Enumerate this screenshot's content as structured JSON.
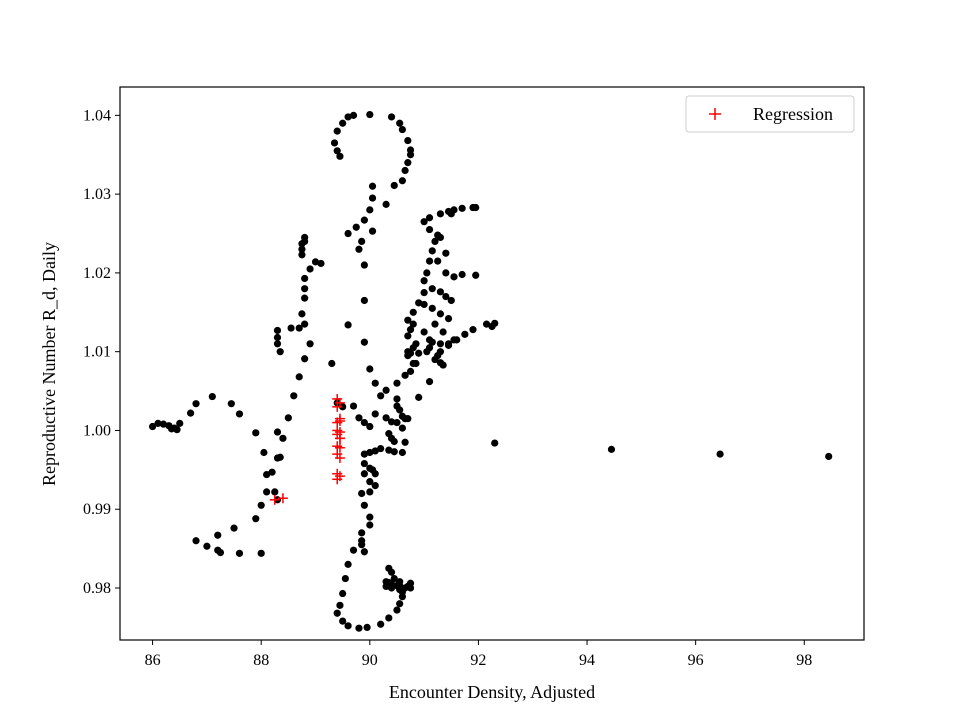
{
  "chart_data": {
    "type": "scatter",
    "xlabel": "Encounter Density, Adjusted",
    "ylabel": "Reproductive Number R_d, Daily",
    "xlim": [
      85.4,
      99.1
    ],
    "ylim": [
      0.9734,
      1.0436
    ],
    "x_ticks": [
      86,
      88,
      90,
      92,
      94,
      96,
      98
    ],
    "y_ticks": [
      0.98,
      0.99,
      1.0,
      1.01,
      1.02,
      1.03,
      1.04
    ],
    "y_tick_labels": [
      "0.98",
      "0.99",
      "1.00",
      "1.01",
      "1.02",
      "1.03",
      "1.04"
    ],
    "legend": {
      "placement": "top-right",
      "entries": [
        "Regression"
      ]
    },
    "colors": {
      "observed": "#000000",
      "regression": "#ff0000"
    },
    "series": [
      {
        "marker": "dot",
        "points": [
          [
            86.0,
            1.0005
          ],
          [
            86.1,
            1.0009
          ],
          [
            86.2,
            1.0008
          ],
          [
            86.3,
            1.0006
          ],
          [
            86.35,
            1.0002
          ],
          [
            86.4,
            1.0003
          ],
          [
            86.45,
            1.0001
          ],
          [
            86.5,
            1.0009
          ],
          [
            86.7,
            1.0022
          ],
          [
            86.8,
            1.0034
          ],
          [
            87.1,
            1.0043
          ],
          [
            87.45,
            1.0034
          ],
          [
            87.6,
            1.0021
          ],
          [
            87.9,
            0.9997
          ],
          [
            88.05,
            0.9972
          ],
          [
            88.1,
            0.9944
          ],
          [
            88.2,
            0.9947
          ],
          [
            88.3,
            0.9965
          ],
          [
            88.4,
            0.999
          ],
          [
            88.5,
            1.0016
          ],
          [
            88.6,
            1.0044
          ],
          [
            88.7,
            1.0068
          ],
          [
            88.8,
            1.0091
          ],
          [
            88.9,
            1.011
          ],
          [
            88.7,
            1.013
          ],
          [
            88.8,
            1.0135
          ],
          [
            88.75,
            1.0148
          ],
          [
            88.8,
            1.0168
          ],
          [
            88.8,
            1.018
          ],
          [
            88.8,
            1.0193
          ],
          [
            88.9,
            1.0205
          ],
          [
            89.0,
            1.0214
          ],
          [
            89.1,
            1.0212
          ],
          [
            88.75,
            1.0223
          ],
          [
            88.75,
            1.023
          ],
          [
            88.75,
            1.0237
          ],
          [
            88.8,
            1.024
          ],
          [
            88.8,
            1.0245
          ],
          [
            88.3,
            1.0127
          ],
          [
            88.3,
            1.0118
          ],
          [
            88.3,
            1.011
          ],
          [
            88.35,
            1.01
          ],
          [
            88.55,
            1.013
          ],
          [
            88.3,
            0.9998
          ],
          [
            88.35,
            0.9966
          ],
          [
            88.25,
            0.9922
          ],
          [
            88.3,
            0.9912
          ],
          [
            88.1,
            0.9922
          ],
          [
            88.0,
            0.9905
          ],
          [
            87.9,
            0.9888
          ],
          [
            87.5,
            0.9876
          ],
          [
            87.2,
            0.9867
          ],
          [
            87.0,
            0.9853
          ],
          [
            86.8,
            0.986
          ],
          [
            87.2,
            0.9848
          ],
          [
            87.25,
            0.9845
          ],
          [
            87.6,
            0.9844
          ],
          [
            88.0,
            0.9844
          ],
          [
            89.3,
            1.0085
          ],
          [
            89.6,
            1.0134
          ],
          [
            89.9,
            1.0165
          ],
          [
            89.9,
            1.021
          ],
          [
            89.8,
            1.023
          ],
          [
            89.85,
            1.024
          ],
          [
            89.6,
            1.025
          ],
          [
            89.75,
            1.0258
          ],
          [
            89.9,
            1.0267
          ],
          [
            90.0,
            1.028
          ],
          [
            90.05,
            1.0295
          ],
          [
            90.05,
            1.031
          ],
          [
            90.3,
            1.0287
          ],
          [
            90.45,
            1.0311
          ],
          [
            90.6,
            1.0317
          ],
          [
            90.65,
            1.033
          ],
          [
            90.7,
            1.034
          ],
          [
            90.75,
            1.035
          ],
          [
            90.75,
            1.0356
          ],
          [
            90.7,
            1.0368
          ],
          [
            90.6,
            1.0382
          ],
          [
            90.55,
            1.039
          ],
          [
            90.4,
            1.0398
          ],
          [
            90.0,
            1.0401
          ],
          [
            89.7,
            1.04
          ],
          [
            89.6,
            1.0398
          ],
          [
            89.5,
            1.039
          ],
          [
            89.4,
            1.038
          ],
          [
            89.35,
            1.0365
          ],
          [
            89.4,
            1.0355
          ],
          [
            89.45,
            1.0348
          ],
          [
            90.05,
            1.0253
          ],
          [
            89.9,
            1.0112
          ],
          [
            90.0,
            1.0078
          ],
          [
            90.1,
            1.006
          ],
          [
            90.2,
            1.0044
          ],
          [
            90.3,
            1.0051
          ],
          [
            90.1,
            1.0021
          ],
          [
            90.3,
            1.0016
          ],
          [
            90.4,
            1.0011
          ],
          [
            89.7,
            1.0031
          ],
          [
            89.8,
            1.0016
          ],
          [
            89.9,
            1.001
          ],
          [
            90.0,
            1.0005
          ],
          [
            89.5,
            1.003
          ],
          [
            89.4,
            1.0035
          ],
          [
            89.9,
            0.997
          ],
          [
            90.0,
            0.9972
          ],
          [
            90.1,
            0.9974
          ],
          [
            90.2,
            0.9977
          ],
          [
            90.35,
            0.9975
          ],
          [
            90.45,
            0.9973
          ],
          [
            90.6,
            0.9972
          ],
          [
            90.65,
            0.9985
          ],
          [
            90.6,
            1.0003
          ],
          [
            90.65,
            1.0015
          ],
          [
            90.5,
            1.0031
          ],
          [
            90.5,
            1.001
          ],
          [
            90.35,
            0.9996
          ],
          [
            90.45,
            0.9986
          ],
          [
            90.4,
            0.999
          ],
          [
            89.9,
            0.9958
          ],
          [
            89.9,
            0.9945
          ],
          [
            90.05,
            0.995
          ],
          [
            90.1,
            0.9945
          ],
          [
            90.0,
            0.9935
          ],
          [
            90.1,
            0.993
          ],
          [
            89.85,
            0.992
          ],
          [
            89.9,
            0.9905
          ],
          [
            90.0,
            0.989
          ],
          [
            89.85,
            0.987
          ],
          [
            89.85,
            0.986
          ],
          [
            89.85,
            0.9855
          ],
          [
            89.9,
            0.9846
          ],
          [
            90.0,
            0.988
          ],
          [
            90.0,
            0.9922
          ],
          [
            90.0,
            0.9952
          ],
          [
            89.7,
            0.9848
          ],
          [
            89.6,
            0.983
          ],
          [
            89.55,
            0.9812
          ],
          [
            89.5,
            0.9793
          ],
          [
            89.45,
            0.9778
          ],
          [
            89.4,
            0.9768
          ],
          [
            89.5,
            0.9758
          ],
          [
            89.6,
            0.9752
          ],
          [
            89.8,
            0.9749
          ],
          [
            89.95,
            0.975
          ],
          [
            90.2,
            0.9754
          ],
          [
            90.35,
            0.9762
          ],
          [
            90.5,
            0.9772
          ],
          [
            90.55,
            0.978
          ],
          [
            90.6,
            0.9789
          ],
          [
            90.3,
            0.9808
          ],
          [
            90.35,
            0.9803
          ],
          [
            90.4,
            0.9805
          ],
          [
            90.4,
            0.98
          ],
          [
            90.3,
            0.9802
          ],
          [
            90.35,
            0.9807
          ],
          [
            90.5,
            0.9803
          ],
          [
            90.55,
            0.9798
          ],
          [
            90.6,
            0.9795
          ],
          [
            90.55,
            0.9803
          ],
          [
            90.7,
            0.9802
          ],
          [
            90.75,
            0.9806
          ],
          [
            90.75,
            0.98
          ],
          [
            90.65,
            0.98
          ],
          [
            90.55,
            0.9808
          ],
          [
            90.45,
            0.9812
          ],
          [
            90.4,
            0.982
          ],
          [
            90.35,
            0.9825
          ],
          [
            90.7,
            1.0015
          ],
          [
            90.6,
            1.0018
          ],
          [
            90.55,
            1.0026
          ],
          [
            90.5,
            1.004
          ],
          [
            90.5,
            1.006
          ],
          [
            90.65,
            1.007
          ],
          [
            90.75,
            1.0075
          ],
          [
            90.8,
            1.0085
          ],
          [
            90.7,
            1.0095
          ],
          [
            90.75,
            1.0098
          ],
          [
            90.7,
            1.01
          ],
          [
            90.8,
            1.0105
          ],
          [
            90.85,
            1.011
          ],
          [
            90.7,
            1.012
          ],
          [
            90.75,
            1.0128
          ],
          [
            90.8,
            1.0135
          ],
          [
            90.7,
            1.014
          ],
          [
            90.8,
            1.015
          ],
          [
            90.9,
            1.0162
          ],
          [
            91.0,
            1.0175
          ],
          [
            91.0,
            1.019
          ],
          [
            91.05,
            1.02
          ],
          [
            91.1,
            1.0215
          ],
          [
            91.15,
            1.0228
          ],
          [
            91.2,
            1.024
          ],
          [
            91.25,
            1.0248
          ],
          [
            91.1,
            1.0255
          ],
          [
            91.0,
            1.0265
          ],
          [
            91.1,
            1.027
          ],
          [
            91.3,
            1.0275
          ],
          [
            91.45,
            1.0278
          ],
          [
            91.55,
            1.028
          ],
          [
            91.7,
            1.0282
          ],
          [
            91.9,
            1.0283
          ],
          [
            91.95,
            1.0283
          ],
          [
            91.5,
            1.0275
          ],
          [
            91.3,
            1.0245
          ],
          [
            91.4,
            1.0225
          ],
          [
            91.25,
            1.0215
          ],
          [
            91.4,
            1.02
          ],
          [
            91.55,
            1.0195
          ],
          [
            91.7,
            1.0198
          ],
          [
            91.95,
            1.0197
          ],
          [
            91.15,
            1.018
          ],
          [
            91.3,
            1.0176
          ],
          [
            91.4,
            1.017
          ],
          [
            91.5,
            1.0165
          ],
          [
            91.0,
            1.016
          ],
          [
            91.15,
            1.0155
          ],
          [
            91.3,
            1.0148
          ],
          [
            91.45,
            1.0142
          ],
          [
            91.2,
            1.0135
          ],
          [
            91.35,
            1.0125
          ],
          [
            91.55,
            1.0115
          ],
          [
            91.0,
            1.0125
          ],
          [
            91.1,
            1.0105
          ],
          [
            91.3,
            1.01
          ],
          [
            91.45,
            1.011
          ],
          [
            91.6,
            1.0115
          ],
          [
            91.75,
            1.0122
          ],
          [
            91.9,
            1.0128
          ],
          [
            92.15,
            1.0135
          ],
          [
            92.25,
            1.0132
          ],
          [
            92.3,
            1.0136
          ],
          [
            91.25,
            1.0095
          ],
          [
            91.05,
            1.01
          ],
          [
            91.1,
            1.0062
          ],
          [
            90.85,
            1.0085
          ],
          [
            90.9,
            1.0042
          ],
          [
            91.2,
            1.009
          ],
          [
            91.3,
            1.0086
          ],
          [
            90.9,
            1.0098
          ],
          [
            91.15,
            1.0112
          ],
          [
            91.3,
            1.011
          ],
          [
            91.45,
            1.0108
          ],
          [
            91.35,
            1.0083
          ],
          [
            91.1,
            1.0115
          ],
          [
            92.3,
            0.9984
          ],
          [
            94.45,
            0.9976
          ],
          [
            96.45,
            0.997
          ],
          [
            98.45,
            0.9967
          ]
        ]
      },
      {
        "name": "Regression",
        "marker": "plus",
        "points": [
          [
            88.25,
            0.9912
          ],
          [
            88.4,
            0.9914
          ],
          [
            89.4,
            1.004
          ],
          [
            89.45,
            1.0035
          ],
          [
            89.4,
            1.003
          ],
          [
            89.45,
            1.0015
          ],
          [
            89.4,
            1.001
          ],
          [
            89.45,
            1.0012
          ],
          [
            89.4,
            0.9995
          ],
          [
            89.45,
            0.999
          ],
          [
            89.4,
            0.998
          ],
          [
            89.45,
            0.9978
          ],
          [
            89.4,
            0.997
          ],
          [
            89.45,
            0.9965
          ],
          [
            89.4,
            0.9945
          ],
          [
            89.45,
            0.9942
          ],
          [
            89.4,
            0.9938
          ],
          [
            89.45,
            0.999
          ],
          [
            89.4,
            1.0
          ],
          [
            89.45,
            0.9998
          ]
        ]
      }
    ]
  }
}
